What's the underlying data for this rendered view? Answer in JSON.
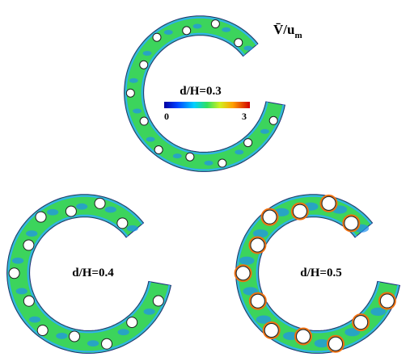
{
  "top_label": {
    "main": "V̄/u",
    "sub": "m"
  },
  "colorbar": {
    "min": 0,
    "max": 3
  },
  "panels": [
    {
      "label": "d/H=0.3"
    },
    {
      "label": "d/H=0.4"
    },
    {
      "label": "d/H=0.5"
    }
  ]
}
